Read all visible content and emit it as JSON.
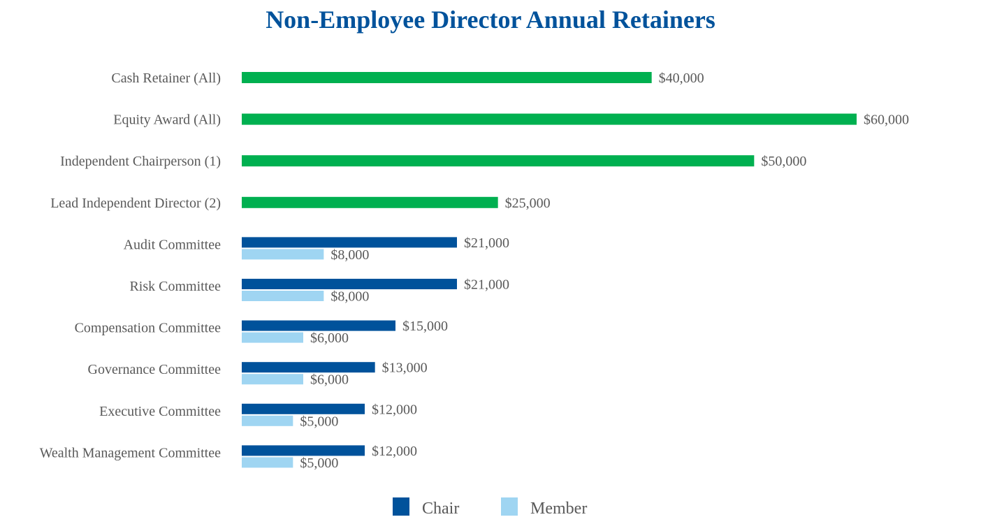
{
  "chart_data": {
    "type": "bar",
    "orientation": "horizontal",
    "title": "Non-Employee Director Annual Retainers",
    "xlabel": "",
    "ylabel": "",
    "xlim": [
      0,
      60000
    ],
    "grid": false,
    "legend_position": "bottom",
    "categories": [
      "Cash Retainer (All)",
      "Equity Award (All)",
      "Independent Chairperson (1)",
      "Lead Independent Director (2)",
      "Audit Committee",
      "Risk Committee",
      "Compensation Committee",
      "Governance Committee",
      "Executive Committee",
      "Wealth Management Committee"
    ],
    "series": [
      {
        "values": [
          40000,
          60000,
          50000,
          25000,
          null,
          null,
          null,
          null,
          null,
          null
        ],
        "labels": [
          "$40,000",
          "$60,000",
          "$50,000",
          "$25,000",
          null,
          null,
          null,
          null,
          null,
          null
        ],
        "color": "#00b050"
      },
      {
        "name": "Chair",
        "values": [
          null,
          null,
          null,
          null,
          21000,
          21000,
          15000,
          13000,
          12000,
          12000
        ],
        "labels": [
          null,
          null,
          null,
          null,
          "$21,000",
          "$21,000",
          "$15,000",
          "$13,000",
          "$12,000",
          "$12,000"
        ],
        "color": "#00529b"
      },
      {
        "name": "Member",
        "values": [
          null,
          null,
          null,
          null,
          8000,
          8000,
          6000,
          6000,
          5000,
          5000
        ],
        "labels": [
          null,
          null,
          null,
          null,
          "$8,000",
          "$8,000",
          "$6,000",
          "$6,000",
          "$5,000",
          "$5,000"
        ],
        "color": "#9fd5f2"
      }
    ]
  }
}
